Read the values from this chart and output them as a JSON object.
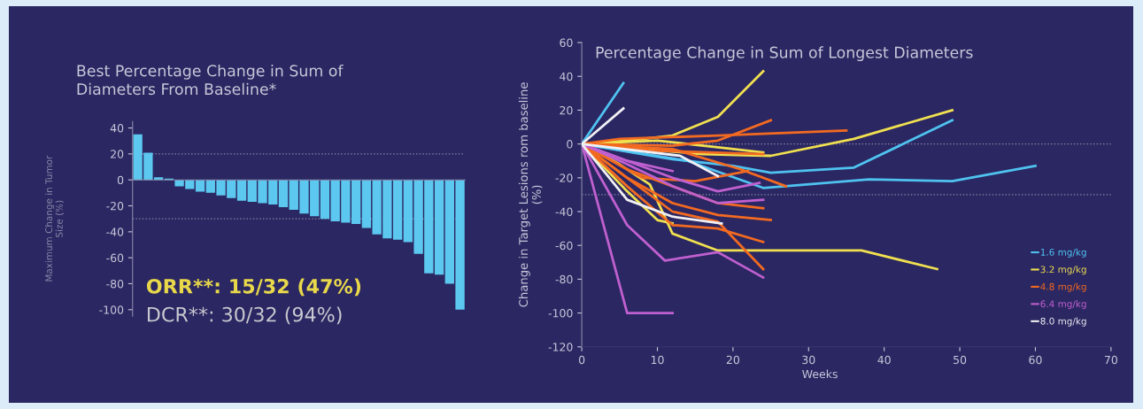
{
  "chart_data": [
    {
      "type": "bar",
      "title": "Best Percentage Change in Sum of\nDiameters From Baseline*",
      "ylabel": "Maximum Change in Tumor\nSize (%)",
      "categories": [
        null,
        null,
        null,
        null,
        null,
        null,
        null,
        null,
        null,
        null,
        null,
        null,
        null,
        null,
        null,
        null,
        null,
        null,
        null,
        null,
        null,
        null,
        null,
        null,
        null,
        null,
        null,
        null,
        null,
        null,
        null,
        null
      ],
      "values": [
        35,
        21,
        2,
        1,
        -5,
        -7,
        -9,
        -10,
        -12,
        -14,
        -16,
        -17,
        -18,
        -19,
        -21,
        -23,
        -26,
        -28,
        -30,
        -32,
        -33,
        -34,
        -37,
        -42,
        -45,
        -46,
        -48,
        -57,
        -72,
        -73,
        -80,
        -100
      ],
      "color": "#5cc8f0",
      "ylim": [
        -105,
        45
      ],
      "yticks": [
        -100,
        -80,
        -60,
        -40,
        -20,
        0,
        20,
        40
      ],
      "tick_labels": "y",
      "ref_lines": [
        {
          "axis": "y",
          "value": 20,
          "color": "#8a88a8",
          "line_style": "dotted"
        },
        {
          "axis": "y",
          "value": -30,
          "color": "#8a88a8",
          "line_style": "dotted"
        }
      ],
      "annotations": [
        "ORR**: 15/32 (47%)",
        "DCR**: 30/32 (94%)"
      ]
    },
    {
      "type": "line",
      "title": "Percentage Change in Sum of Longest Diameters",
      "xlabel": "Weeks",
      "ylabel": "Change in Target Lesions rom baseline\n(%)",
      "xlim": [
        0,
        70
      ],
      "xticks": [
        0,
        10,
        20,
        30,
        40,
        50,
        60,
        70
      ],
      "ylim": [
        -120,
        60
      ],
      "yticks": [
        -120,
        -100,
        -80,
        -60,
        -40,
        -20,
        0,
        20,
        40,
        60
      ],
      "legend": "lower right",
      "ref_lines": [
        {
          "axis": "y",
          "value": 0,
          "color": "#8a88a8",
          "line_style": "dotted"
        },
        {
          "axis": "y",
          "value": -30,
          "color": "#8a88a8",
          "line_style": "dotted"
        }
      ],
      "series": [
        {
          "name": "1.6 mg/kg",
          "color": "#4fc3f0",
          "x": [
            0,
            5.5
          ],
          "values": [
            0,
            36
          ]
        },
        {
          "color": "#4fc3f0",
          "x": [
            0,
            14,
            24,
            38,
            49,
            60
          ],
          "values": [
            0,
            -10,
            -26,
            -21,
            -22,
            -13
          ]
        },
        {
          "color": "#4fc3f0",
          "x": [
            0,
            12,
            20,
            25,
            36,
            49
          ],
          "values": [
            0,
            -9,
            -13,
            -17,
            -14,
            14
          ]
        },
        {
          "name": "3.2 mg/kg",
          "color": "#f0e050",
          "x": [
            0,
            6,
            12,
            18,
            24
          ],
          "values": [
            0,
            2,
            5,
            16,
            43
          ]
        },
        {
          "color": "#f0e050",
          "x": [
            0,
            8,
            16,
            25,
            36,
            49
          ],
          "values": [
            0,
            -3,
            -6,
            -7,
            3,
            20
          ]
        },
        {
          "color": "#f0e050",
          "x": [
            0,
            5,
            9,
            12,
            18,
            37,
            47
          ],
          "values": [
            0,
            -12,
            -24,
            -53,
            -63,
            -63,
            -74
          ]
        },
        {
          "color": "#f0e050",
          "x": [
            0,
            10,
            18,
            24
          ],
          "values": [
            0,
            2,
            -2,
            -5
          ]
        },
        {
          "color": "#f0e050",
          "x": [
            0,
            6,
            10,
            12
          ],
          "values": [
            0,
            -28,
            -45,
            -47
          ]
        },
        {
          "name": "4.8 mg/kg",
          "color": "#f26a21",
          "x": [
            0,
            5,
            18,
            35
          ],
          "values": [
            0,
            3,
            5,
            8
          ]
        },
        {
          "color": "#f26a21",
          "x": [
            0,
            12,
            18,
            25
          ],
          "values": [
            0,
            -1,
            2,
            14
          ]
        },
        {
          "color": "#f26a21",
          "x": [
            0,
            12,
            21,
            27
          ],
          "values": [
            0,
            -3,
            -15,
            -25
          ]
        },
        {
          "color": "#f26a21",
          "x": [
            0,
            10,
            24
          ],
          "values": [
            0,
            -4,
            -6
          ]
        },
        {
          "color": "#f26a21",
          "x": [
            0,
            6,
            12,
            18,
            24
          ],
          "values": [
            0,
            -15,
            -25,
            -35,
            -38
          ]
        },
        {
          "color": "#f26a21",
          "x": [
            0,
            6,
            12,
            18,
            25
          ],
          "values": [
            0,
            -20,
            -35,
            -42,
            -45
          ]
        },
        {
          "color": "#f26a21",
          "x": [
            0,
            6,
            12,
            18,
            24
          ],
          "values": [
            0,
            -25,
            -48,
            -50,
            -58
          ]
        },
        {
          "color": "#f26a21",
          "x": [
            0,
            6,
            12,
            18,
            24
          ],
          "values": [
            0,
            -20,
            -40,
            -46,
            -74
          ]
        },
        {
          "color": "#f26a21",
          "x": [
            0,
            8,
            15,
            22
          ],
          "values": [
            0,
            -20,
            -22,
            -16
          ]
        },
        {
          "name": "6.4 mg/kg",
          "color": "#c060d0",
          "x": [
            0,
            6,
            12
          ],
          "values": [
            0,
            -100,
            -100
          ]
        },
        {
          "color": "#c060d0",
          "x": [
            0,
            6,
            11,
            18,
            24
          ],
          "values": [
            0,
            -48,
            -69,
            -64,
            -79
          ]
        },
        {
          "color": "#c060d0",
          "x": [
            0,
            6,
            12,
            18,
            23.5
          ],
          "values": [
            0,
            -10,
            -20,
            -28,
            -23
          ]
        },
        {
          "color": "#c060d0",
          "x": [
            0,
            6,
            12,
            18,
            24
          ],
          "values": [
            0,
            -12,
            -25,
            -35,
            -33
          ]
        },
        {
          "color": "#c060d0",
          "x": [
            0,
            6,
            12
          ],
          "values": [
            0,
            -10,
            -16
          ]
        },
        {
          "name": "8.0 mg/kg",
          "color": "#f0f0f4",
          "x": [
            0,
            5.5
          ],
          "values": [
            0,
            21
          ]
        },
        {
          "color": "#f0f0f4",
          "x": [
            0,
            13,
            18
          ],
          "values": [
            0,
            -7,
            -19
          ]
        },
        {
          "color": "#f0f0f4",
          "x": [
            0,
            6,
            12,
            18.5
          ],
          "values": [
            0,
            -33,
            -43,
            -47
          ]
        }
      ]
    }
  ]
}
